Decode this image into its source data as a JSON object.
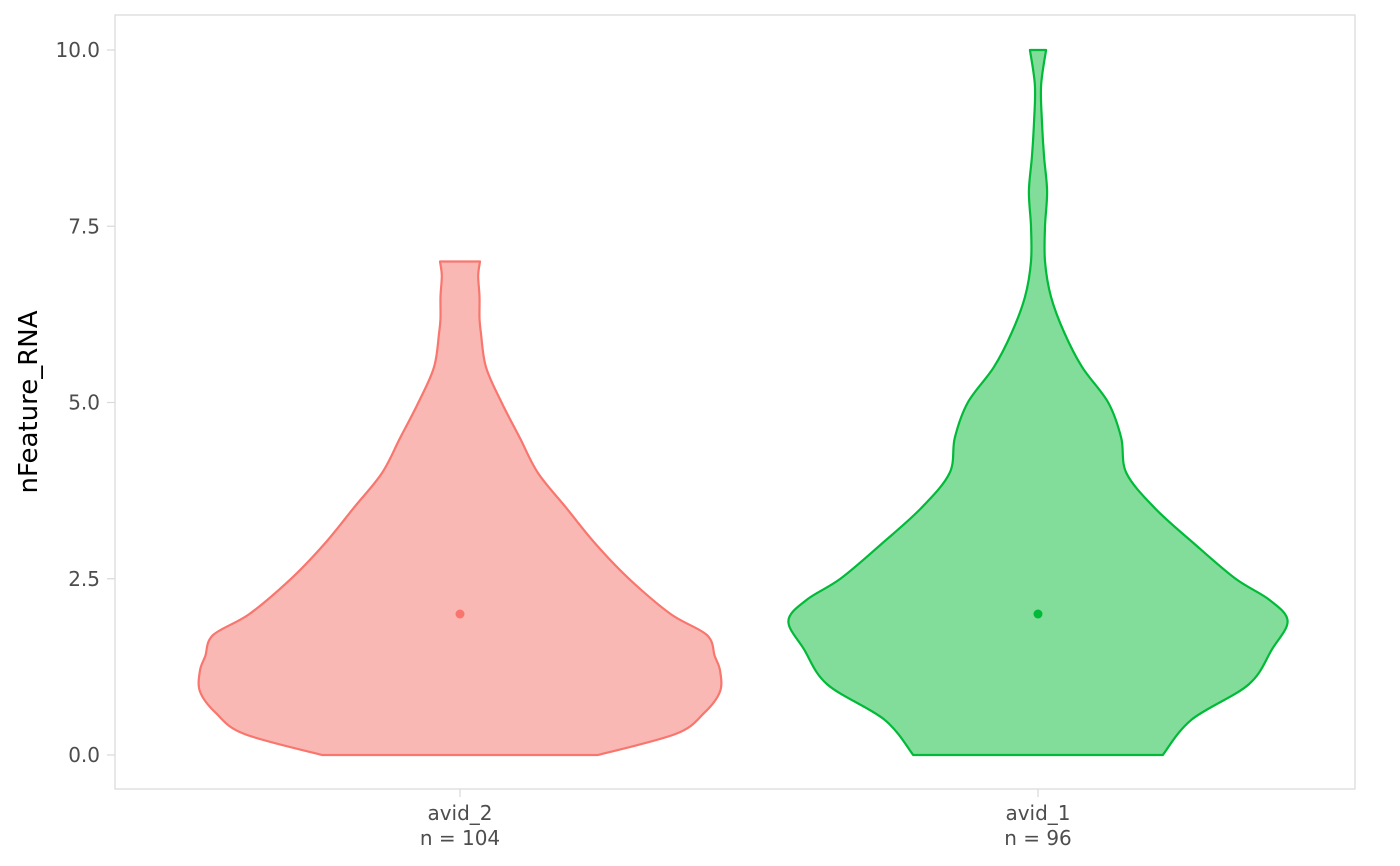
{
  "chart_data": {
    "type": "violin",
    "title": "",
    "xlabel": "",
    "ylabel": "nFeature_RNA",
    "ylim": [
      -0.5,
      10.5
    ],
    "yticks": [
      0.0,
      2.5,
      5.0,
      7.5,
      10.0
    ],
    "ytick_labels": [
      "0.0",
      "2.5",
      "5.0",
      "7.5",
      "10.0"
    ],
    "grid": false,
    "categories": [
      "avid_2",
      "avid_1"
    ],
    "category_counts": [
      "n = 104",
      "n = 96"
    ],
    "series": [
      {
        "category": "avid_2",
        "count": 104,
        "median": 2.0,
        "fill": "#FAB8B5",
        "stroke": "#F8766D",
        "range": [
          0,
          7
        ],
        "density": [
          [
            0.0,
            0.53
          ],
          [
            0.3,
            0.83
          ],
          [
            0.6,
            0.94
          ],
          [
            0.9,
            1.0
          ],
          [
            1.2,
            1.0
          ],
          [
            1.4,
            0.98
          ],
          [
            1.7,
            0.95
          ],
          [
            2.0,
            0.81
          ],
          [
            2.5,
            0.65
          ],
          [
            3.0,
            0.52
          ],
          [
            3.5,
            0.41
          ],
          [
            4.0,
            0.3
          ],
          [
            4.5,
            0.23
          ],
          [
            5.0,
            0.16
          ],
          [
            5.5,
            0.1
          ],
          [
            6.0,
            0.08
          ],
          [
            6.2,
            0.075
          ],
          [
            6.5,
            0.075
          ],
          [
            6.8,
            0.07
          ],
          [
            7.0,
            0.077
          ]
        ]
      },
      {
        "category": "avid_1",
        "count": 96,
        "median": 2.0,
        "fill": "#82DC9A",
        "stroke": "#00BA38",
        "range": [
          0,
          10
        ],
        "density": [
          [
            0.0,
            0.48
          ],
          [
            0.5,
            0.59
          ],
          [
            1.0,
            0.81
          ],
          [
            1.5,
            0.9
          ],
          [
            1.9,
            0.96
          ],
          [
            2.2,
            0.89
          ],
          [
            2.5,
            0.76
          ],
          [
            3.0,
            0.6
          ],
          [
            3.5,
            0.45
          ],
          [
            4.0,
            0.34
          ],
          [
            4.5,
            0.32
          ],
          [
            5.0,
            0.27
          ],
          [
            5.5,
            0.17
          ],
          [
            6.0,
            0.1
          ],
          [
            6.5,
            0.05
          ],
          [
            7.0,
            0.027
          ],
          [
            7.5,
            0.027
          ],
          [
            8.0,
            0.035
          ],
          [
            8.5,
            0.023
          ],
          [
            9.0,
            0.015
          ],
          [
            9.5,
            0.012
          ],
          [
            10.0,
            0.031
          ]
        ]
      }
    ]
  }
}
